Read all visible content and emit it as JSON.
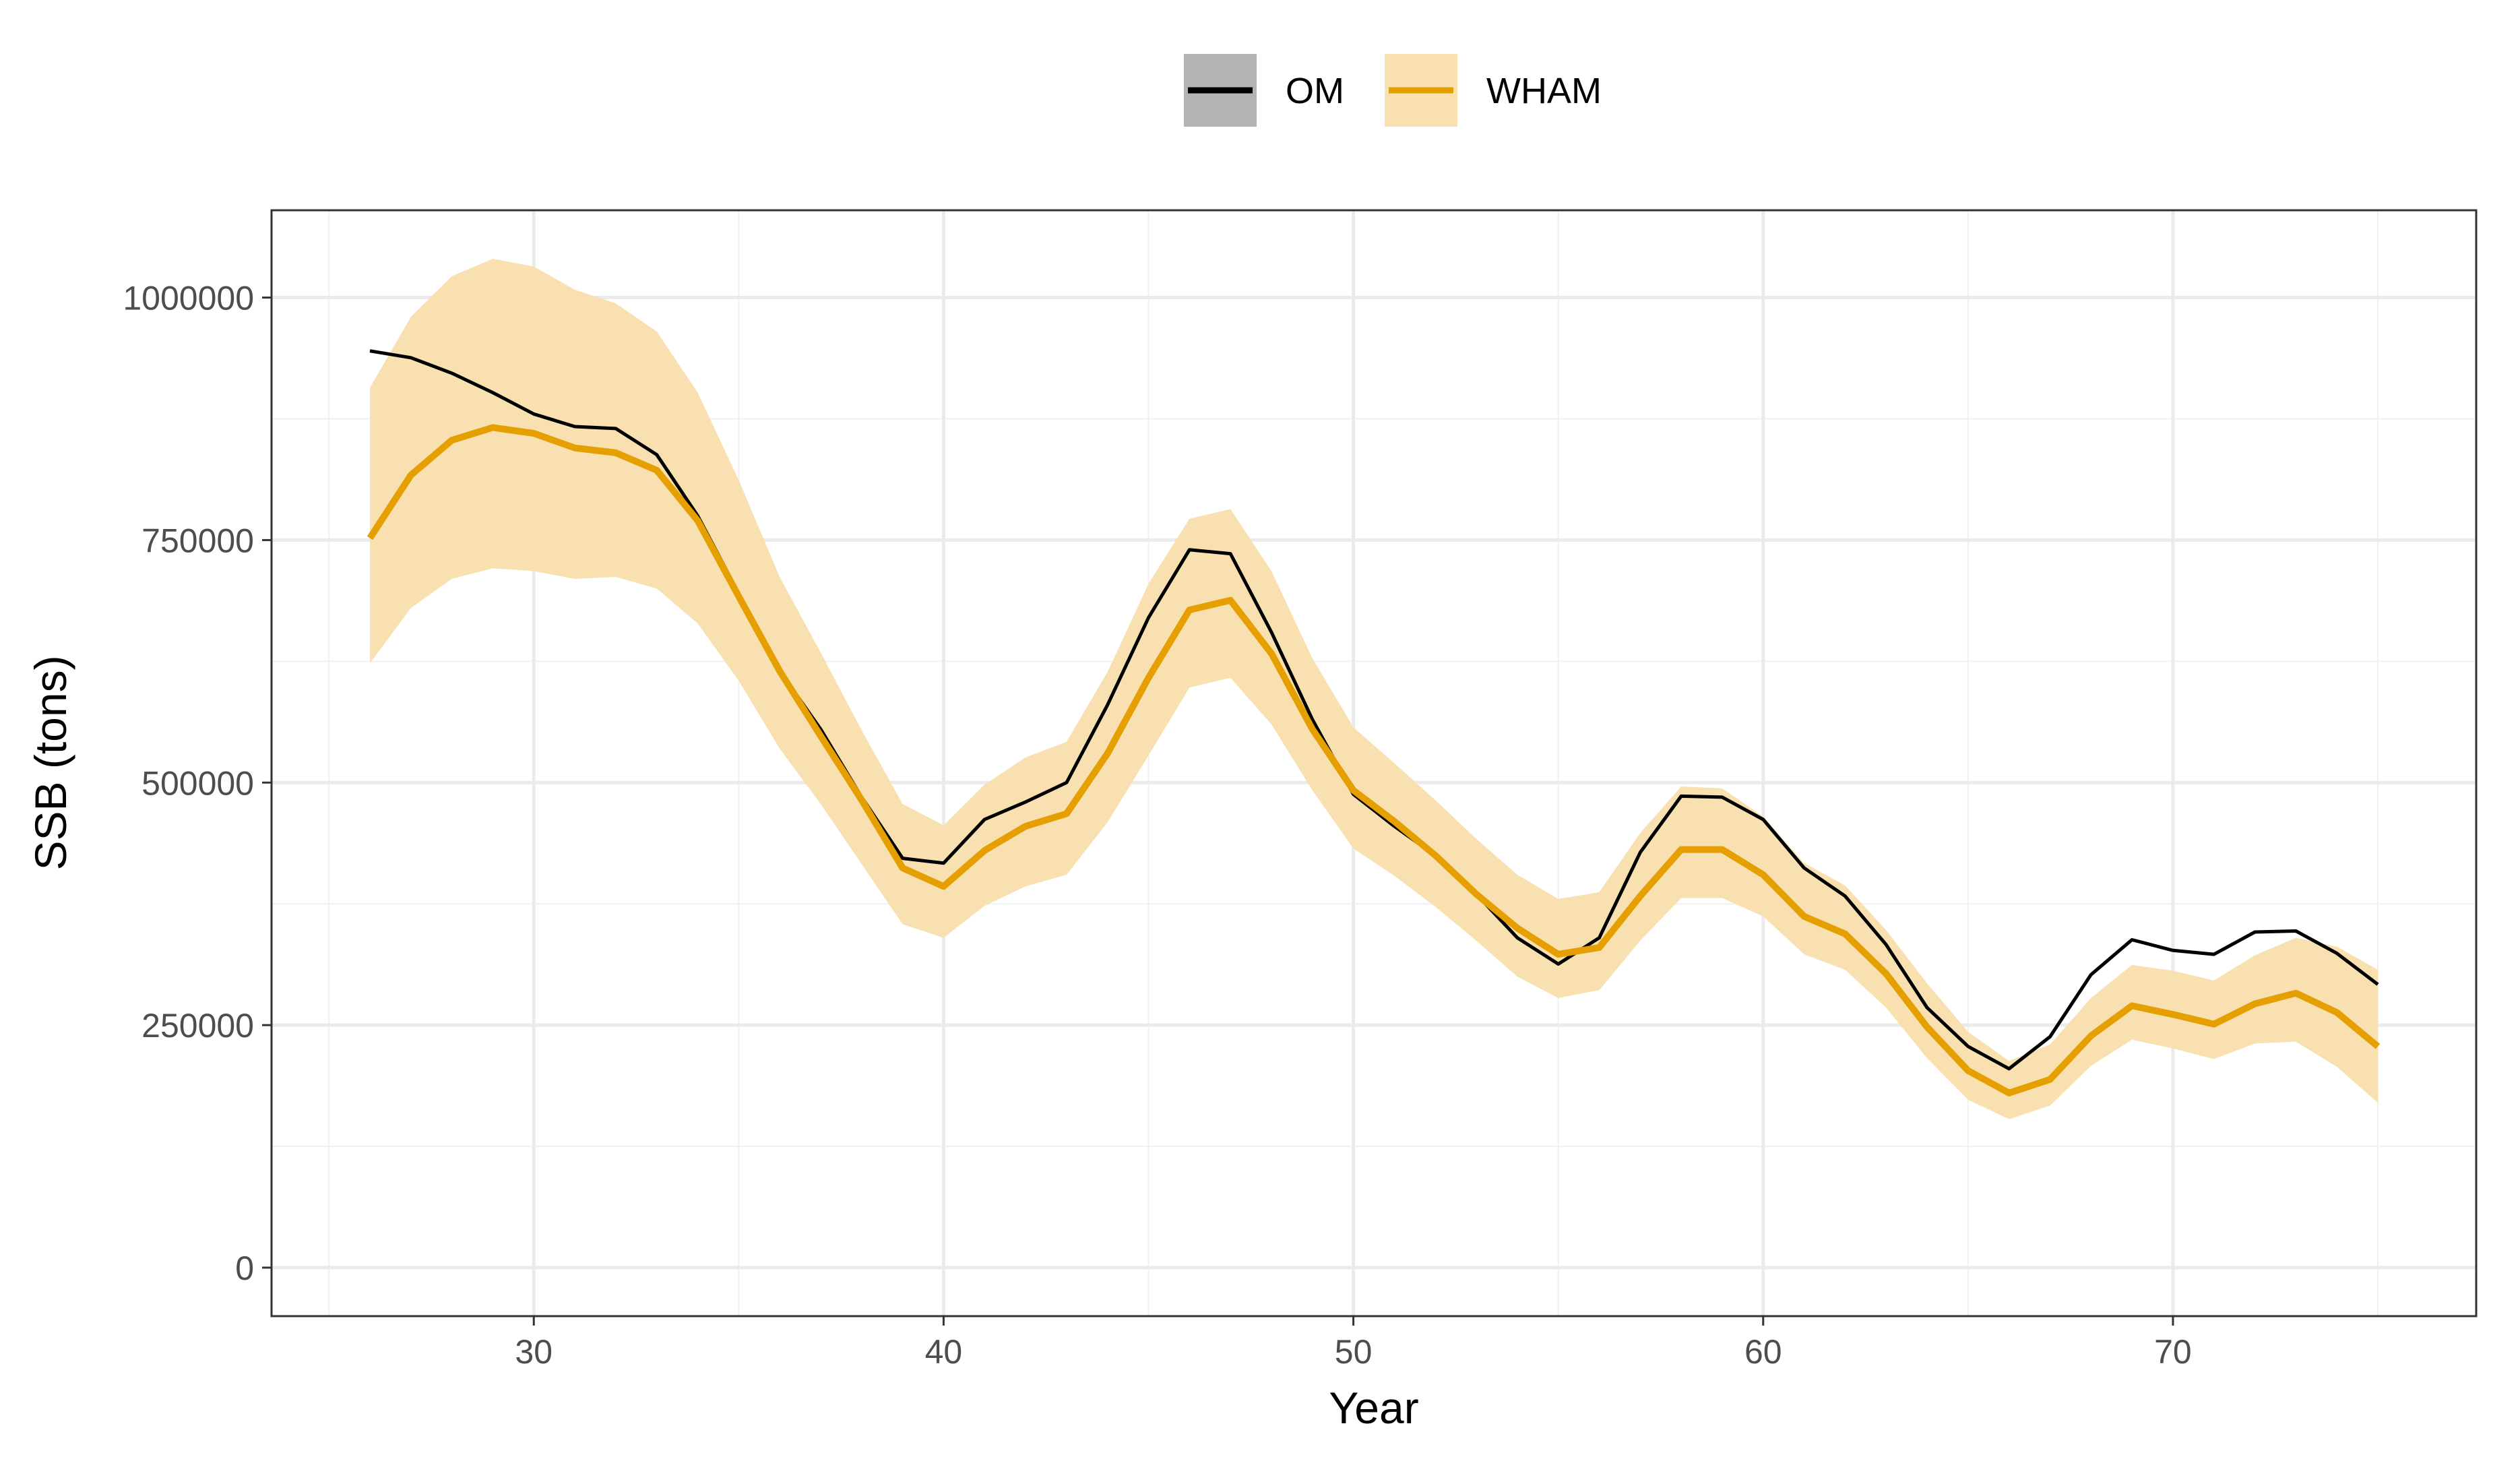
{
  "chart_data": {
    "type": "line",
    "xlabel": "Year",
    "ylabel": "SSB (tons)",
    "xlim": [
      23.6,
      77.4
    ],
    "ylim": [
      -50000,
      1090000
    ],
    "xticks": [
      30,
      40,
      50,
      60,
      70
    ],
    "yticks": [
      0,
      250000,
      500000,
      750000,
      1000000
    ],
    "xtick_labels": [
      "30",
      "40",
      "50",
      "60",
      "70"
    ],
    "ytick_labels": [
      "0",
      "250000",
      "500000",
      "750000",
      "1000000"
    ],
    "grid": true,
    "legend_position": "top",
    "x": [
      26,
      27,
      28,
      29,
      30,
      31,
      32,
      33,
      34,
      35,
      36,
      37,
      38,
      39,
      40,
      41,
      42,
      43,
      44,
      45,
      46,
      47,
      48,
      49,
      50,
      51,
      52,
      53,
      54,
      55,
      56,
      57,
      58,
      59,
      60,
      61,
      62,
      63,
      64,
      65,
      66,
      67,
      68,
      69,
      70,
      71,
      72,
      73,
      74,
      75
    ],
    "series": [
      {
        "name": "OM",
        "color": "#000000",
        "values": [
          945000,
          938000,
          922000,
          902000,
          880000,
          867000,
          865000,
          838000,
          775000,
          695000,
          615000,
          555000,
          485000,
          422000,
          417000,
          462000,
          480000,
          500000,
          580000,
          670000,
          740000,
          736000,
          655000,
          565000,
          488000,
          455000,
          425000,
          385000,
          340000,
          313000,
          340000,
          428000,
          486000,
          485000,
          462000,
          412000,
          383000,
          333000,
          268000,
          228000,
          205000,
          238000,
          302000,
          338000,
          327000,
          323000,
          346000,
          347000,
          324000,
          292000
        ]
      },
      {
        "name": "WHAM",
        "color": "#E69F00",
        "values": [
          752000,
          817000,
          853000,
          866000,
          860000,
          845000,
          840000,
          822000,
          770000,
          692000,
          615000,
          548000,
          482000,
          412000,
          393000,
          430000,
          455000,
          468000,
          530000,
          608000,
          678000,
          688000,
          633000,
          555000,
          492000,
          460000,
          425000,
          385000,
          350000,
          323000,
          330000,
          383000,
          431000,
          431000,
          405000,
          362000,
          344000,
          303000,
          248000,
          203000,
          180000,
          194000,
          239000,
          270000,
          261000,
          251000,
          272000,
          283000,
          263000,
          228000
        ],
        "ci_lower": [
          623000,
          680000,
          710000,
          721000,
          718000,
          710000,
          712000,
          700000,
          664000,
          605000,
          535000,
          478000,
          416000,
          354000,
          340000,
          373000,
          393000,
          405000,
          459000,
          528000,
          598000,
          608000,
          560000,
          492000,
          432000,
          404000,
          372000,
          337000,
          300000,
          278000,
          286000,
          337000,
          381000,
          381000,
          362000,
          323000,
          307000,
          268000,
          216000,
          173000,
          153000,
          167000,
          208000,
          235000,
          226000,
          215000,
          231000,
          233000,
          207000,
          170000
        ],
        "ci_upper": [
          907000,
          980000,
          1022000,
          1040000,
          1032000,
          1008000,
          994000,
          965000,
          902000,
          812000,
          712000,
          634000,
          554000,
          478000,
          456000,
          498000,
          526000,
          542000,
          614000,
          705000,
          772000,
          782000,
          718000,
          628000,
          557000,
          520000,
          482000,
          442000,
          405000,
          380000,
          387000,
          448000,
          496000,
          494000,
          465000,
          417000,
          394000,
          348000,
          293000,
          243000,
          213000,
          230000,
          278000,
          312000,
          306000,
          296000,
          322000,
          340000,
          331000,
          307000
        ],
        "band_color": "#F8E0B0"
      }
    ]
  }
}
